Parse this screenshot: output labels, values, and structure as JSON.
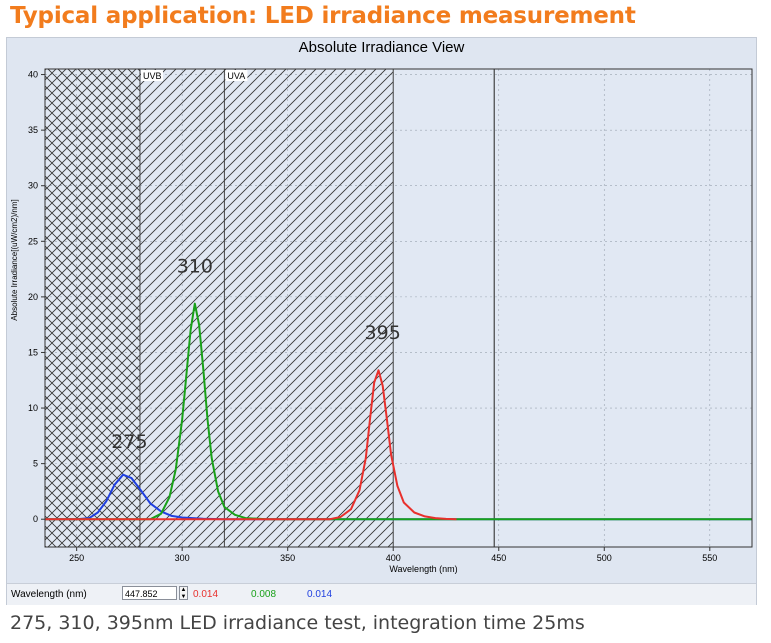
{
  "page_title": "Typical application: LED irradiance measurement",
  "caption": "275, 310, 395nm LED irradiance test, integration time 25ms",
  "status_bar": {
    "wavelength_label": "Wavelength (nm)",
    "wavelength_value": "447.852",
    "readouts": [
      {
        "value": "0.014",
        "color": "#e8302c"
      },
      {
        "value": "0.008",
        "color": "#19a119"
      },
      {
        "value": "0.014",
        "color": "#2040e0"
      }
    ]
  },
  "chart_data": {
    "type": "line",
    "title": "Absolute Irradiance View",
    "xlabel": "Wavelength (nm)",
    "ylabel": "Absolute Irradiance[(uW/cm2)/nm]",
    "xlim": [
      235,
      570
    ],
    "ylim": [
      -2.5,
      40.5
    ],
    "xticks": [
      250,
      300,
      350,
      400,
      450,
      500,
      550
    ],
    "yticks": [
      0,
      5,
      10,
      15,
      20,
      25,
      30,
      35,
      40
    ],
    "grid": true,
    "bands": [
      {
        "label": "",
        "x_start": 235,
        "x_end": 280,
        "pattern": "crosshatch"
      },
      {
        "label": "UVB",
        "x_start": 280,
        "x_end": 320,
        "pattern": "diagonal"
      },
      {
        "label": "UVA",
        "x_start": 320,
        "x_end": 400,
        "pattern": "diagonal"
      }
    ],
    "cursor_x": 447.852,
    "annotations": [
      {
        "text": "275",
        "x": 275,
        "y": 6.4
      },
      {
        "text": "310",
        "x": 306,
        "y": 22.2
      },
      {
        "text": "395",
        "x": 395,
        "y": 16.2
      }
    ],
    "series": [
      {
        "color": "#2040e0",
        "x": [
          235,
          250,
          256,
          260,
          264,
          268,
          272,
          276,
          280,
          285,
          290,
          295,
          300,
          310,
          320,
          340,
          360,
          400,
          450,
          500,
          570
        ],
        "y": [
          0,
          0,
          0.1,
          0.6,
          1.6,
          3.1,
          4.0,
          3.7,
          2.7,
          1.4,
          0.7,
          0.3,
          0.15,
          0.05,
          0,
          0,
          0,
          0,
          0,
          0,
          0
        ]
      },
      {
        "color": "#19a119",
        "x": [
          235,
          285,
          290,
          294,
          297,
          300,
          302,
          304,
          306,
          308,
          310,
          312,
          314,
          317,
          320,
          325,
          330,
          340,
          570
        ],
        "y": [
          0,
          0,
          0.5,
          2.0,
          4.5,
          9.0,
          13.0,
          17.0,
          19.4,
          17.5,
          13.5,
          9.0,
          5.5,
          2.5,
          1.1,
          0.4,
          0.1,
          0,
          0
        ]
      },
      {
        "color": "#e8302c",
        "x": [
          235,
          370,
          375,
          380,
          384,
          387,
          389,
          391,
          393,
          395,
          397,
          399,
          402,
          405,
          410,
          415,
          420,
          425,
          430
        ],
        "y": [
          0,
          0,
          0.2,
          0.9,
          2.6,
          5.5,
          9.0,
          12.3,
          13.4,
          12.0,
          9.0,
          5.8,
          3.0,
          1.5,
          0.6,
          0.25,
          0.1,
          0.03,
          0
        ]
      }
    ]
  }
}
